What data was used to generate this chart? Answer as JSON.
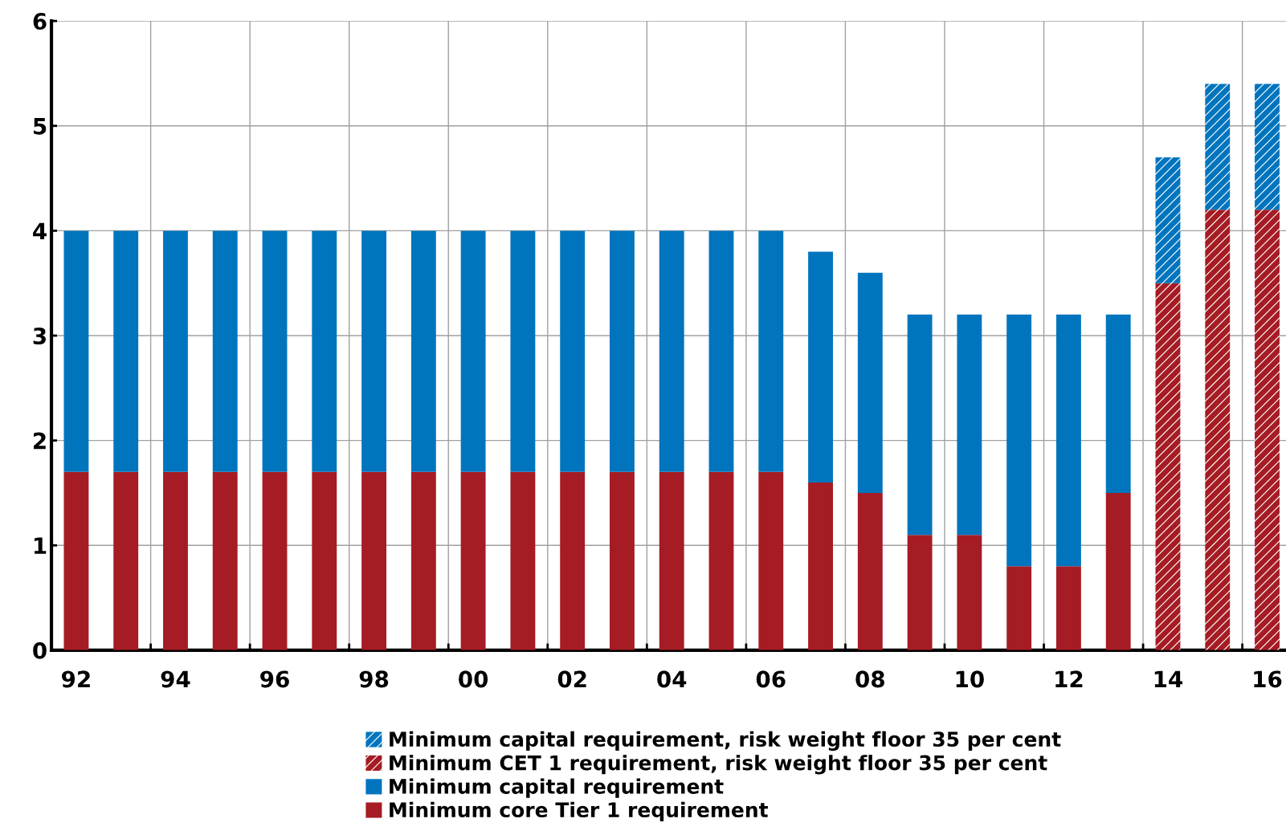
{
  "chart_data": {
    "type": "bar",
    "stacked": true,
    "categories": [
      "92",
      null,
      "94",
      null,
      "96",
      null,
      "98",
      null,
      "00",
      null,
      "02",
      null,
      "04",
      null,
      "06",
      null,
      "08",
      null,
      "10",
      null,
      "12",
      null,
      "14",
      null,
      "16"
    ],
    "series": [
      {
        "name": "Minimum core Tier 1 requirement",
        "color": "#a51c24",
        "values": [
          1.7,
          1.7,
          1.7,
          1.7,
          1.7,
          1.7,
          1.7,
          1.7,
          1.7,
          1.7,
          1.7,
          1.7,
          1.7,
          1.7,
          1.7,
          1.6,
          1.5,
          1.1,
          1.1,
          0.8,
          0.8,
          1.5,
          null,
          null,
          null
        ]
      },
      {
        "name": "Minimum capital requirement",
        "color": "#0075be",
        "values": [
          2.3,
          2.3,
          2.3,
          2.3,
          2.3,
          2.3,
          2.3,
          2.3,
          2.3,
          2.3,
          2.3,
          2.3,
          2.3,
          2.3,
          2.3,
          2.2,
          2.1,
          2.1,
          2.1,
          2.4,
          2.4,
          1.7,
          null,
          null,
          null
        ]
      },
      {
        "name": "Minimum CET 1 requirement, risk weight floor 35 per cent",
        "color": "#a51c24",
        "values": [
          null,
          null,
          null,
          null,
          null,
          null,
          null,
          null,
          null,
          null,
          null,
          null,
          null,
          null,
          null,
          null,
          null,
          null,
          null,
          null,
          null,
          null,
          3.5,
          4.2,
          4.2
        ]
      },
      {
        "name": "Minimum capital requirement, risk weight floor 35 per cent",
        "color": "#0075be",
        "values": [
          null,
          null,
          null,
          null,
          null,
          null,
          null,
          null,
          null,
          null,
          null,
          null,
          null,
          null,
          null,
          null,
          null,
          null,
          null,
          null,
          null,
          null,
          1.2,
          1.2,
          1.2
        ]
      }
    ],
    "ylim": [
      0,
      6
    ],
    "yticks": [
      0,
      1,
      2,
      3,
      4,
      5,
      6
    ],
    "grid": true,
    "legend": "bottom"
  }
}
